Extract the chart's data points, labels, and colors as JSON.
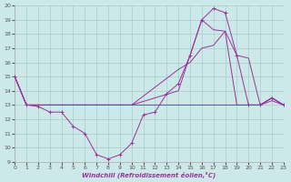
{
  "background_color": "#cce8e8",
  "grid_color": "#aacccc",
  "line_color": "#993399",
  "xlabel": "Windchill (Refroidissement éolien,°C)",
  "xlim": [
    0,
    23
  ],
  "ylim": [
    9,
    20
  ],
  "xticks": [
    0,
    1,
    2,
    3,
    4,
    5,
    6,
    7,
    8,
    9,
    10,
    11,
    12,
    13,
    14,
    15,
    16,
    17,
    18,
    19,
    20,
    21,
    22,
    23
  ],
  "yticks": [
    9,
    10,
    11,
    12,
    13,
    14,
    15,
    16,
    17,
    18,
    19,
    20
  ],
  "line1_x": [
    0,
    1,
    2,
    3,
    4,
    5,
    6,
    7,
    8,
    9,
    10,
    11,
    12,
    13,
    14,
    15,
    16,
    17,
    18,
    19,
    20,
    21,
    22,
    23
  ],
  "line1_y": [
    15,
    13,
    12.9,
    12.5,
    12.5,
    11.5,
    11,
    9.5,
    9.2,
    9.5,
    10.3,
    12.3,
    12.5,
    13.8,
    14.5,
    16.5,
    19,
    19.8,
    19.5,
    16.5,
    13,
    13,
    13.5,
    13
  ],
  "line2_x": [
    0,
    1,
    2,
    3,
    10,
    19,
    20,
    21,
    22,
    23
  ],
  "line2_y": [
    15,
    13,
    13,
    13,
    13,
    13,
    13,
    13,
    13.3,
    13
  ],
  "line3_x": [
    0,
    1,
    2,
    3,
    10,
    14,
    15,
    16,
    17,
    18,
    19,
    20,
    21,
    22,
    23
  ],
  "line3_y": [
    15,
    13,
    13,
    13,
    13,
    15.5,
    16,
    17,
    17.2,
    18.2,
    16.5,
    16.3,
    13,
    13.5,
    13
  ],
  "line4_x": [
    0,
    1,
    2,
    3,
    10,
    14,
    15,
    16,
    17,
    18,
    19,
    21,
    22,
    23
  ],
  "line4_y": [
    15,
    13,
    13,
    13,
    13,
    14,
    16.5,
    19,
    18.3,
    18.2,
    13,
    13,
    13.5,
    13
  ]
}
